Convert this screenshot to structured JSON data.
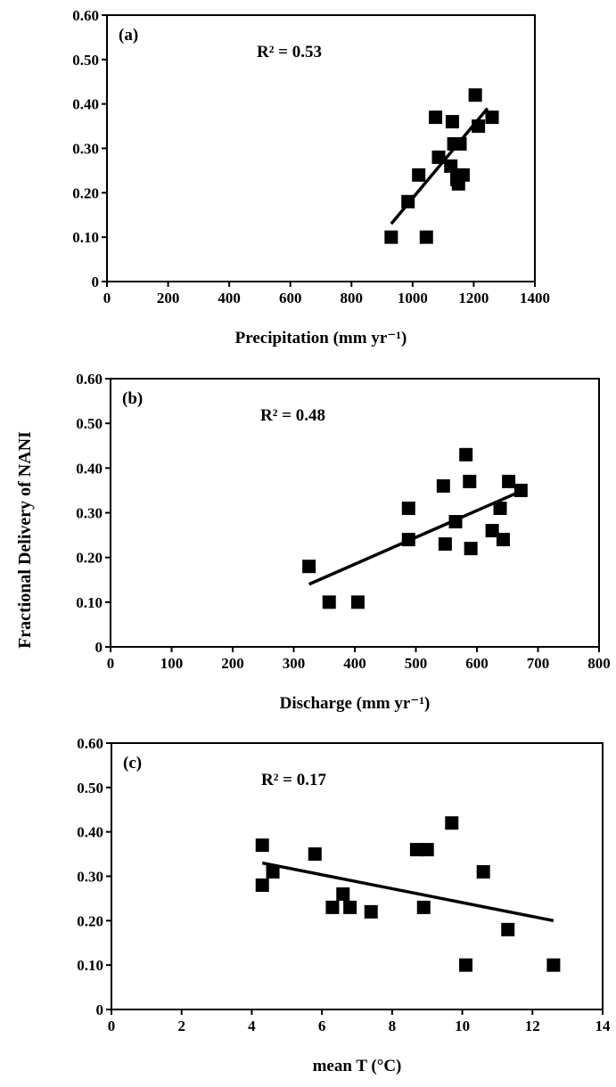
{
  "figure": {
    "ylabel": "Fractional Delivery of NANI"
  },
  "chart_data": [
    {
      "type": "scatter",
      "panel_label": "(a)",
      "annotation": "R² = 0.53",
      "xlabel": "Precipitation (mm yr⁻¹)",
      "xlim": [
        0,
        1400
      ],
      "ylim": [
        0,
        0.6
      ],
      "xticks": [
        "0",
        "200",
        "400",
        "600",
        "800",
        "1000",
        "1200",
        "1400"
      ],
      "yticks": [
        "0",
        "0.10",
        "0.20",
        "0.30",
        "0.40",
        "0.50",
        "0.60"
      ],
      "grid": false,
      "points": [
        [
          930,
          0.1
        ],
        [
          985,
          0.18
        ],
        [
          1020,
          0.24
        ],
        [
          1045,
          0.1
        ],
        [
          1075,
          0.37
        ],
        [
          1085,
          0.28
        ],
        [
          1125,
          0.26
        ],
        [
          1130,
          0.36
        ],
        [
          1135,
          0.31
        ],
        [
          1145,
          0.23
        ],
        [
          1150,
          0.22
        ],
        [
          1155,
          0.31
        ],
        [
          1165,
          0.24
        ],
        [
          1205,
          0.42
        ],
        [
          1215,
          0.35
        ],
        [
          1260,
          0.37
        ]
      ],
      "trendline": [
        [
          930,
          0.13
        ],
        [
          1245,
          0.39
        ]
      ]
    },
    {
      "type": "scatter",
      "panel_label": "(b)",
      "annotation": "R² = 0.48",
      "xlabel": "Discharge (mm yr⁻¹)",
      "xlim": [
        0,
        800
      ],
      "ylim": [
        0,
        0.6
      ],
      "xticks": [
        "0",
        "100",
        "200",
        "300",
        "400",
        "500",
        "600",
        "700",
        "800"
      ],
      "yticks": [
        "0",
        "0.10",
        "0.20",
        "0.30",
        "0.40",
        "0.50",
        "0.60"
      ],
      "grid": false,
      "points": [
        [
          325,
          0.18
        ],
        [
          358,
          0.1
        ],
        [
          405,
          0.1
        ],
        [
          488,
          0.31
        ],
        [
          488,
          0.24
        ],
        [
          545,
          0.36
        ],
        [
          548,
          0.23
        ],
        [
          565,
          0.28
        ],
        [
          582,
          0.43
        ],
        [
          588,
          0.37
        ],
        [
          590,
          0.22
        ],
        [
          625,
          0.26
        ],
        [
          638,
          0.31
        ],
        [
          643,
          0.24
        ],
        [
          652,
          0.37
        ],
        [
          672,
          0.35
        ]
      ],
      "trendline": [
        [
          325,
          0.14
        ],
        [
          675,
          0.35
        ]
      ]
    },
    {
      "type": "scatter",
      "panel_label": "(c)",
      "annotation": "R² = 0.17",
      "xlabel": "mean T (°C)",
      "xlim": [
        0,
        14
      ],
      "ylim": [
        0,
        0.6
      ],
      "xticks": [
        "0",
        "2",
        "4",
        "6",
        "8",
        "10",
        "12",
        "14"
      ],
      "yticks": [
        "0",
        "0.10",
        "0.20",
        "0.30",
        "0.40",
        "0.50",
        "0.60"
      ],
      "grid": false,
      "points": [
        [
          4.3,
          0.37
        ],
        [
          4.3,
          0.28
        ],
        [
          4.6,
          0.31
        ],
        [
          5.8,
          0.35
        ],
        [
          6.3,
          0.23
        ],
        [
          6.6,
          0.26
        ],
        [
          6.8,
          0.23
        ],
        [
          7.4,
          0.22
        ],
        [
          8.7,
          0.36
        ],
        [
          8.9,
          0.23
        ],
        [
          9.0,
          0.36
        ],
        [
          9.7,
          0.42
        ],
        [
          10.1,
          0.1
        ],
        [
          10.6,
          0.31
        ],
        [
          11.3,
          0.18
        ],
        [
          12.6,
          0.1
        ]
      ],
      "trendline": [
        [
          4.3,
          0.33
        ],
        [
          12.6,
          0.2
        ]
      ]
    }
  ]
}
